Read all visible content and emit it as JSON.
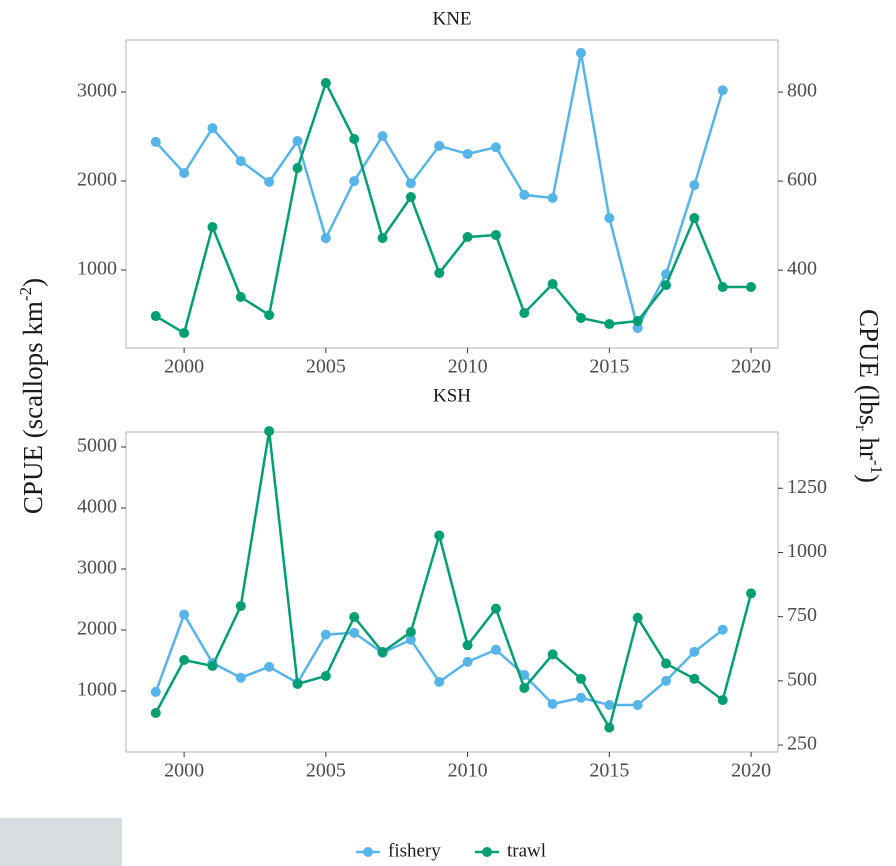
{
  "chart_data": [
    {
      "type": "line",
      "title": "KNE",
      "x": [
        1999,
        2000,
        2001,
        2002,
        2003,
        2004,
        2005,
        2006,
        2007,
        2008,
        2009,
        2010,
        2011,
        2012,
        2013,
        2014,
        2015,
        2016,
        2017,
        2018,
        2019,
        2020
      ],
      "xlim": [
        1997.95,
        2020.95
      ],
      "xticks": [
        2000,
        2005,
        2010,
        2015,
        2020
      ],
      "ylim": [
        124,
        3584
      ],
      "yticks": [
        1000,
        2000,
        3000
      ],
      "y2lim": [
        225,
        917
      ],
      "y2ticks": [
        400,
        600,
        800
      ],
      "series": [
        {
          "name": "fishery",
          "color": "#56b4e9",
          "axis": "y2",
          "values": [
            688,
            618,
            719,
            645,
            598,
            690,
            472,
            600,
            701,
            595,
            679,
            661,
            676,
            569,
            562,
            888,
            517,
            270,
            391,
            591,
            804,
            null
          ]
        },
        {
          "name": "trawl",
          "color": "#009e73",
          "values": [
            483,
            292,
            1483,
            697,
            494,
            2146,
            3101,
            2472,
            1360,
            1820,
            966,
            1371,
            1393,
            517,
            843,
            461,
            393,
            427,
            831,
            1584,
            809,
            809
          ]
        }
      ]
    },
    {
      "type": "line",
      "title": "KSH",
      "x": [
        1999,
        2000,
        2001,
        2002,
        2003,
        2004,
        2005,
        2006,
        2007,
        2008,
        2009,
        2010,
        2011,
        2012,
        2013,
        2014,
        2015,
        2016,
        2017,
        2018,
        2019,
        2020
      ],
      "xlim": [
        1997.95,
        2020.95
      ],
      "xticks": [
        2000,
        2005,
        2010,
        2015,
        2020
      ],
      "ylim": [
        0,
        5246
      ],
      "yticks": [
        1000,
        2000,
        3000,
        4000,
        5000
      ],
      "y2lim": [
        223,
        1469
      ],
      "y2ticks": [
        250,
        500,
        750,
        1000,
        1250
      ],
      "series": [
        {
          "name": "fishery",
          "color": "#56b4e9",
          "axis": "y2",
          "values": [
            457,
            758,
            570,
            512,
            555,
            492,
            680,
            687,
            609,
            660,
            496,
            574,
            621,
            523,
            410,
            434,
            406,
            406,
            500,
            613,
            699,
            null
          ]
        },
        {
          "name": "trawl",
          "color": "#009e73",
          "values": [
            639,
            1508,
            1410,
            2393,
            5261,
            1115,
            1246,
            2213,
            1639,
            1967,
            3550,
            1750,
            2350,
            1050,
            1600,
            1200,
            400,
            2200,
            1450,
            1200,
            850,
            2600
          ]
        }
      ]
    }
  ],
  "ylabel": [
    "CPUE (scallops km",
    "-2",
    ")"
  ],
  "y2label": [
    "CPUE (lbs",
    "r",
    " hr",
    "-1",
    ")"
  ]
}
